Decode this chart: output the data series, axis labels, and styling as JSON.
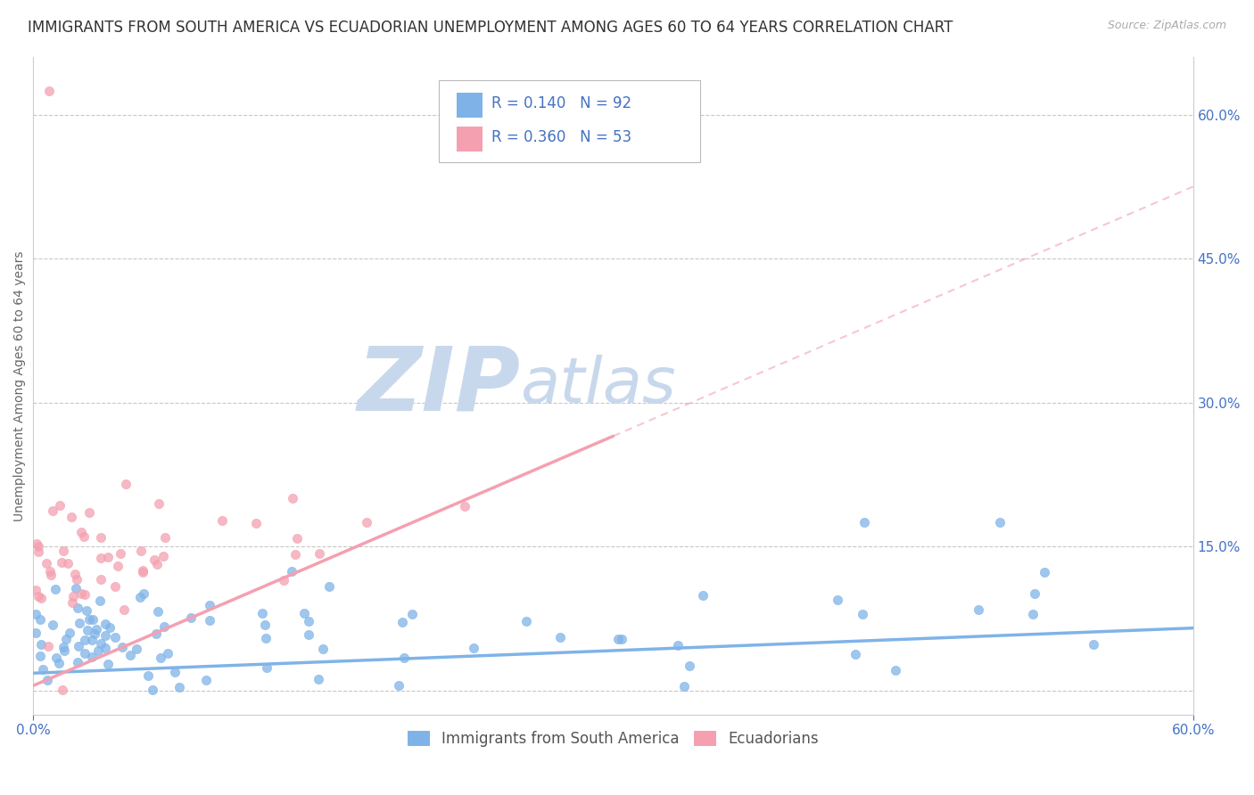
{
  "title": "IMMIGRANTS FROM SOUTH AMERICA VS ECUADORIAN UNEMPLOYMENT AMONG AGES 60 TO 64 YEARS CORRELATION CHART",
  "source": "Source: ZipAtlas.com",
  "ylabel": "Unemployment Among Ages 60 to 64 years",
  "xlim": [
    0.0,
    0.6
  ],
  "ylim": [
    -0.025,
    0.66
  ],
  "ytick_right": [
    0.0,
    0.15,
    0.3,
    0.45,
    0.6
  ],
  "ytick_right_labels": [
    "",
    "15.0%",
    "30.0%",
    "45.0%",
    "60.0%"
  ],
  "grid_color": "#c8c8c8",
  "background_color": "#ffffff",
  "watermark_zip": "ZIP",
  "watermark_atlas": "atlas",
  "watermark_color_zip": "#c8d8ec",
  "watermark_color_atlas": "#c8d8ec",
  "series1_color": "#7fb3e8",
  "series2_color": "#f4a0b0",
  "series1_label": "Immigrants from South America",
  "series2_label": "Ecuadorians",
  "R1": 0.14,
  "N1": 92,
  "R2": 0.36,
  "N2": 53,
  "title_fontsize": 12,
  "axis_label_fontsize": 10,
  "tick_fontsize": 11,
  "legend_fontsize": 12
}
